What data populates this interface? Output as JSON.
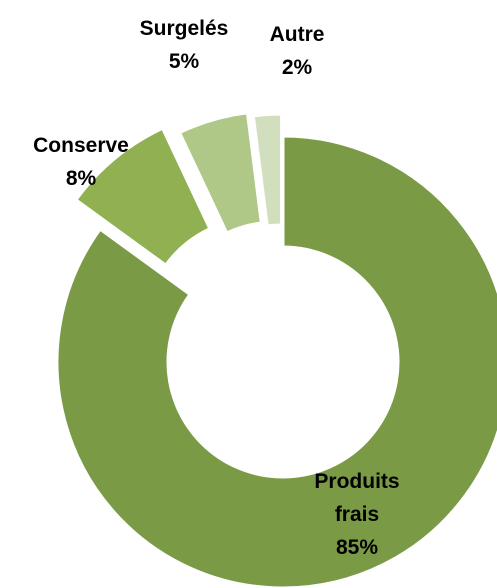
{
  "chart_data": {
    "type": "pie",
    "variant": "donut-exploded",
    "title": "",
    "legend": "none",
    "slices": [
      {
        "label": "Produits frais",
        "label_lines": [
          "Produits",
          "frais"
        ],
        "value": 85,
        "value_label": "85%",
        "color": "#7a9a46"
      },
      {
        "label": "Conserve",
        "label_lines": [
          "Conserve"
        ],
        "value": 8,
        "value_label": "8%",
        "color": "#90b052"
      },
      {
        "label": "Surgelés",
        "label_lines": [
          "Surgelés"
        ],
        "value": 5,
        "value_label": "5%",
        "color": "#afc887"
      },
      {
        "label": "Autre",
        "label_lines": [
          "Autre"
        ],
        "value": 2,
        "value_label": "2%",
        "color": "#d2dfbf"
      }
    ]
  }
}
